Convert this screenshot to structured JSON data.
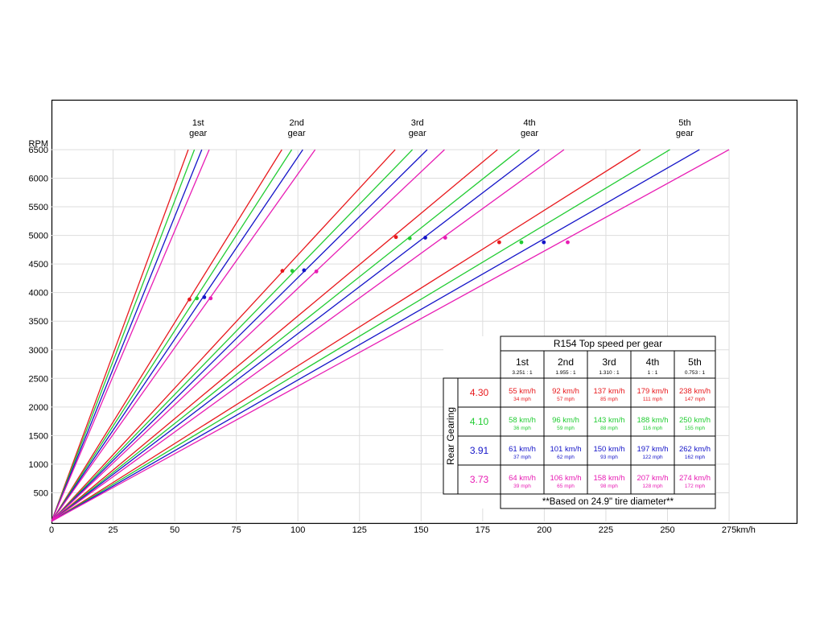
{
  "chart_data": {
    "type": "line",
    "x_unit_label": "km/h",
    "y_unit_label": "RPM",
    "x_ticks": [
      0,
      25,
      50,
      75,
      100,
      125,
      150,
      175,
      200,
      225,
      250,
      275
    ],
    "y_ticks": [
      500,
      1000,
      1500,
      2000,
      2500,
      3000,
      3500,
      4000,
      4500,
      5000,
      5500,
      6000,
      6500
    ],
    "xlim": [
      0,
      275
    ],
    "ylim": [
      0,
      6500
    ],
    "grid": true,
    "gear_labels": [
      {
        "line1": "1st",
        "line2": "gear"
      },
      {
        "line1": "2nd",
        "line2": "gear"
      },
      {
        "line1": "3rd",
        "line2": "gear"
      },
      {
        "line1": "4th",
        "line2": "gear"
      },
      {
        "line1": "5th",
        "line2": "gear"
      }
    ],
    "gear_label_x": [
      59.5,
      99.5,
      148.5,
      194,
      257
    ],
    "colors": {
      "4.30": "#e8191d",
      "4.10": "#22cc33",
      "3.91": "#1414c8",
      "3.73": "#e81cb4"
    },
    "series": [
      {
        "rear_ratio": "4.30",
        "color": "#e8191d",
        "speed_at_6500": [
          55.5,
          93.5,
          139.5,
          181,
          239
        ],
        "shift_points": [
          {
            "x": 56,
            "y": 3880
          },
          {
            "x": 93.7,
            "y": 4380
          },
          {
            "x": 139.8,
            "y": 4970
          },
          {
            "x": 181.7,
            "y": 4880
          },
          {
            "x": null,
            "y": null
          }
        ]
      },
      {
        "rear_ratio": "4.10",
        "color": "#22cc33",
        "speed_at_6500": [
          58,
          97.5,
          146.5,
          190,
          251
        ],
        "shift_points": [
          {
            "x": 59,
            "y": 3900
          },
          {
            "x": 97.7,
            "y": 4380
          },
          {
            "x": 145.4,
            "y": 4950
          },
          {
            "x": 190.7,
            "y": 4880
          },
          {
            "x": null,
            "y": null
          }
        ]
      },
      {
        "rear_ratio": "3.91",
        "color": "#1414c8",
        "speed_at_6500": [
          61,
          102,
          152.5,
          198,
          263
        ],
        "shift_points": [
          {
            "x": 62,
            "y": 3920
          },
          {
            "x": 102.5,
            "y": 4390
          },
          {
            "x": 151.7,
            "y": 4960
          },
          {
            "x": 199.8,
            "y": 4880
          },
          {
            "x": null,
            "y": null
          }
        ]
      },
      {
        "rear_ratio": "3.73",
        "color": "#e81cb4",
        "speed_at_6500": [
          64,
          107,
          159.5,
          208,
          275
        ],
        "shift_points": [
          {
            "x": 64.6,
            "y": 3900
          },
          {
            "x": 107.5,
            "y": 4370
          },
          {
            "x": 159.8,
            "y": 4960
          },
          {
            "x": 209.5,
            "y": 4880
          },
          {
            "x": null,
            "y": null
          }
        ]
      }
    ],
    "table": {
      "title": "R154 Top speed per gear",
      "row_header": "Rear Gearing",
      "columns": [
        {
          "name": "1st",
          "ratio": "3.251 : 1"
        },
        {
          "name": "2nd",
          "ratio": "1.955 : 1"
        },
        {
          "name": "3rd",
          "ratio": "1.310 : 1"
        },
        {
          "name": "4th",
          "ratio": "1 : 1"
        },
        {
          "name": "5th",
          "ratio": "0.753 : 1"
        }
      ],
      "rows": [
        {
          "ratio": "4.30",
          "color": "#e8191d",
          "kmh": [
            "55 km/h",
            "92 km/h",
            "137 km/h",
            "179 km/h",
            "238 km/h"
          ],
          "mph": [
            "34 mph",
            "57 mph",
            "85 mph",
            "111 mph",
            "147 mph"
          ]
        },
        {
          "ratio": "4.10",
          "color": "#22cc33",
          "kmh": [
            "58 km/h",
            "96 km/h",
            "143 km/h",
            "188 km/h",
            "250 km/h"
          ],
          "mph": [
            "36 mph",
            "59 mph",
            "88 mph",
            "116 mph",
            "155 mph"
          ]
        },
        {
          "ratio": "3.91",
          "color": "#1414c8",
          "kmh": [
            "61 km/h",
            "101 km/h",
            "150 km/h",
            "197 km/h",
            "262 km/h"
          ],
          "mph": [
            "37 mph",
            "62 mph",
            "93 mph",
            "122 mph",
            "162 mph"
          ]
        },
        {
          "ratio": "3.73",
          "color": "#e81cb4",
          "kmh": [
            "64 km/h",
            "106 km/h",
            "158 km/h",
            "207 km/h",
            "274 km/h"
          ],
          "mph": [
            "39 mph",
            "65 mph",
            "98 mph",
            "128 mph",
            "172 mph"
          ]
        }
      ],
      "footnote": "**Based on 24.9\" tire diameter**"
    }
  }
}
